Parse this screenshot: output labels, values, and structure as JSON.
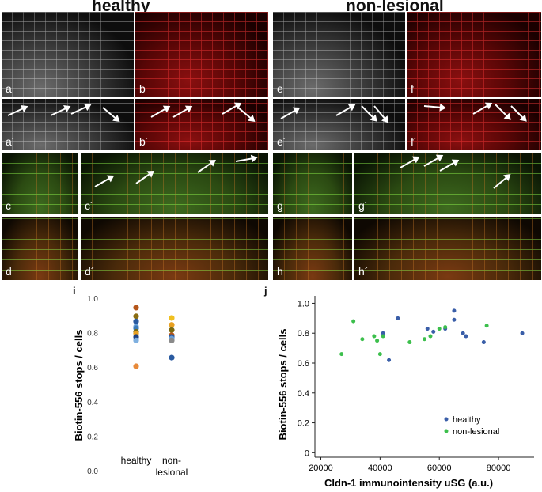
{
  "headers": {
    "left": "healthy",
    "right": "non-lesional"
  },
  "panels": {
    "a": "a",
    "b": "b",
    "e": "e",
    "f": "f",
    "a2": "a´",
    "b2": "b´",
    "e2": "e´",
    "f2": "f´",
    "c": "c",
    "c2": "c´",
    "g": "g",
    "g2": "g´",
    "d": "d",
    "d2": "d´",
    "h": "h",
    "h2": "h´"
  },
  "colors": {
    "healthy": "#3a5ea8",
    "nonlesional": "#3cbf4c"
  },
  "chart_data": [
    {
      "panel_label": "i",
      "type": "scatter",
      "ylabel": "Biotin-556 stops / cells",
      "ylim": [
        0.0,
        1.0
      ],
      "yticks": [
        "0.0",
        "0.2",
        "0.4",
        "0.6",
        "0.8",
        "1.0"
      ],
      "categories": [
        "healthy",
        "non-lesional"
      ],
      "category_lines": [
        [
          "healthy"
        ],
        [
          "non-",
          "lesional"
        ]
      ],
      "points": [
        {
          "category": "healthy",
          "y": 0.95,
          "color": "#b5561a"
        },
        {
          "category": "healthy",
          "y": 0.9,
          "color": "#8a6d12"
        },
        {
          "category": "healthy",
          "y": 0.87,
          "color": "#2a5aa0"
        },
        {
          "category": "healthy",
          "y": 0.84,
          "color": "#6aa0d8"
        },
        {
          "category": "healthy",
          "y": 0.83,
          "color": "#3a7ab8"
        },
        {
          "category": "healthy",
          "y": 0.81,
          "color": "#7a6a10"
        },
        {
          "category": "healthy",
          "y": 0.8,
          "color": "#e8a020"
        },
        {
          "category": "healthy",
          "y": 0.78,
          "color": "#1e3f80"
        },
        {
          "category": "healthy",
          "y": 0.76,
          "color": "#7fb0e0"
        },
        {
          "category": "healthy",
          "y": 0.61,
          "color": "#e88a3a"
        },
        {
          "category": "non-lesional",
          "y": 0.89,
          "color": "#f0c020"
        },
        {
          "category": "non-lesional",
          "y": 0.85,
          "color": "#e8a020"
        },
        {
          "category": "non-lesional",
          "y": 0.82,
          "color": "#7a6a10"
        },
        {
          "category": "non-lesional",
          "y": 0.79,
          "color": "#b5561a"
        },
        {
          "category": "non-lesional",
          "y": 0.78,
          "color": "#2a5aa0"
        },
        {
          "category": "non-lesional",
          "y": 0.77,
          "color": "#6aa0d8"
        },
        {
          "category": "non-lesional",
          "y": 0.76,
          "color": "#8a8a8a"
        },
        {
          "category": "non-lesional",
          "y": 0.66,
          "color": "#2a5aa0"
        }
      ]
    },
    {
      "panel_label": "j",
      "type": "scatter",
      "xlabel": "Cldn-1 immunointensity uSG (a.u.)",
      "ylabel": "Biotin-556 stops / cells",
      "xlim": [
        18000,
        92000
      ],
      "ylim": [
        -0.03,
        1.05
      ],
      "xticks": [
        "20000",
        "40000",
        "60000",
        "80000"
      ],
      "yticks": [
        "0",
        "0.2",
        "0.4",
        "0.6",
        "0.8",
        "1.0"
      ],
      "legend_position": "bottom-right",
      "series": [
        {
          "name": "healthy",
          "color": "#3a5ea8",
          "points": [
            [
              41000,
              0.8
            ],
            [
              43000,
              0.62
            ],
            [
              46000,
              0.9
            ],
            [
              56000,
              0.83
            ],
            [
              58000,
              0.81
            ],
            [
              62000,
              0.83
            ],
            [
              65000,
              0.95
            ],
            [
              65000,
              0.89
            ],
            [
              68000,
              0.8
            ],
            [
              69000,
              0.78
            ],
            [
              75000,
              0.74
            ],
            [
              88000,
              0.8
            ]
          ]
        },
        {
          "name": "non-lesional",
          "color": "#3cbf4c",
          "points": [
            [
              27000,
              0.66
            ],
            [
              31000,
              0.88
            ],
            [
              34000,
              0.76
            ],
            [
              38000,
              0.78
            ],
            [
              39000,
              0.75
            ],
            [
              40000,
              0.66
            ],
            [
              41000,
              0.78
            ],
            [
              50000,
              0.74
            ],
            [
              55000,
              0.76
            ],
            [
              57000,
              0.78
            ],
            [
              60000,
              0.83
            ],
            [
              62000,
              0.84
            ],
            [
              76000,
              0.85
            ]
          ]
        }
      ]
    }
  ]
}
